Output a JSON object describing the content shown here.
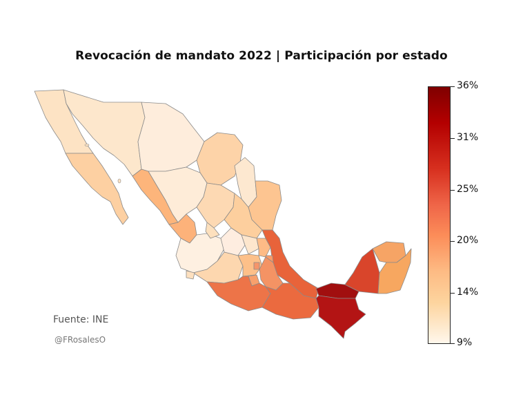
{
  "title": "Revocación de mandato 2022 | Participación por estado",
  "source": "Fuente: INE",
  "handle": "@FRosalesO",
  "colors": {
    "low": "#fff5eb",
    "mid": "#fdb77a",
    "high": "#7f0000",
    "border": "#8a8a8a"
  },
  "colorbar": {
    "ticks": [
      "36%",
      "31%",
      "25%",
      "20%",
      "14%",
      "9%"
    ]
  }
}
